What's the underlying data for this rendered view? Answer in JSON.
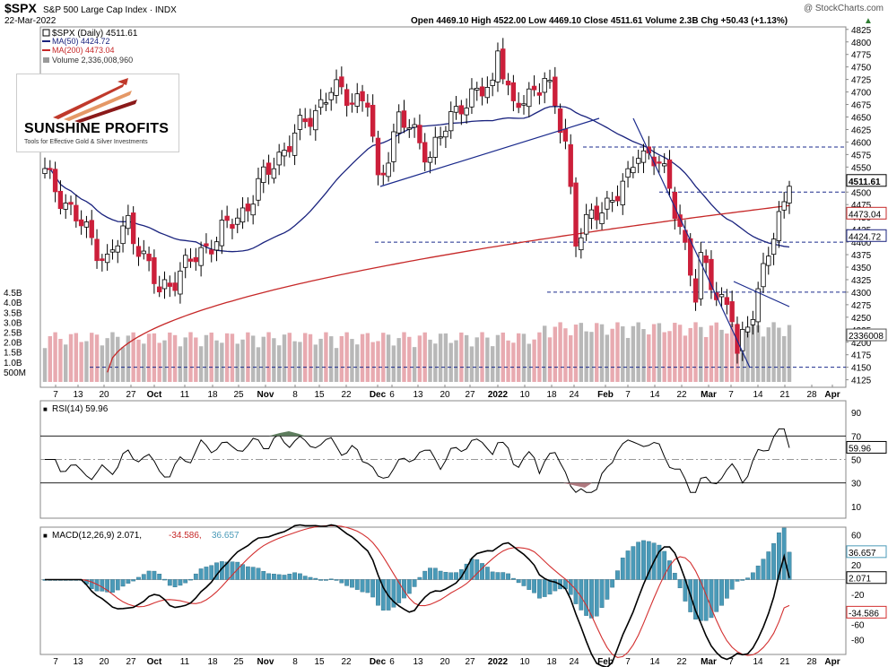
{
  "header": {
    "symbol": "$SPX",
    "name": "S&P 500 Large Cap Index",
    "exchange": "INDX",
    "copyright": "@ StockCharts.com",
    "date": "22-Mar-2022",
    "ohlc_line": "Open 4469.10  High 4522.00  Low 4469.10  Close 4511.61  Volume 2.3B  Chg +50.43 (+1.13%)",
    "change_arrow": "▲"
  },
  "legend": {
    "price": "$SPX (Daily) 4511.61",
    "ma50": "MA(50) 4424.72",
    "ma200": "MA(200) 4473.04",
    "volume": "Volume 2,336,008,960"
  },
  "logo": {
    "line1": "SUNSHINE PROFITS",
    "line2": "Tools for Effective Gold & Silver Investments"
  },
  "price_axis_labels": [
    "4825",
    "4800",
    "4775",
    "4750",
    "4725",
    "4700",
    "4675",
    "4650",
    "4625",
    "4600",
    "4575",
    "4550",
    "4525",
    "4500",
    "4475",
    "4450",
    "4425",
    "4400",
    "4375",
    "4350",
    "4325",
    "4300",
    "4275",
    "4250",
    "4225",
    "4200",
    "4175",
    "4150",
    "4125"
  ],
  "volume_axis_labels": [
    "4.5B",
    "4.0B",
    "3.5B",
    "3.0B",
    "2.5B",
    "2.0B",
    "1.5B",
    "1.0B",
    "500M"
  ],
  "value_tags": {
    "close": "4511.61",
    "ma200": "4473.04",
    "ma50": "4424.72",
    "volume": "2336008"
  },
  "x_axis_labels": [
    "7",
    "13",
    "20",
    "27",
    "Oct",
    "11",
    "18",
    "25",
    "Nov",
    "8",
    "15",
    "22",
    "Dec",
    "6",
    "13",
    "20",
    "27",
    "2022",
    "10",
    "18",
    "24",
    "Feb",
    "7",
    "14",
    "22",
    "Mar",
    "7",
    "14",
    "21",
    "28",
    "Apr"
  ],
  "rsi": {
    "title": "RSI(14) 59.96",
    "axis_labels": [
      "90",
      "70",
      "50",
      "30",
      "10"
    ],
    "tag": "59.96"
  },
  "macd": {
    "title": "MACD(12,26,9) 2.071,",
    "signal_text": "-34.586,",
    "hist_text": "36.657",
    "axis_labels": [
      "60",
      "40",
      "20",
      "0",
      "-20",
      "-40",
      "-60",
      "-80"
    ],
    "tags": {
      "hist": "36.657",
      "macd": "2.071",
      "signal": "-34.586"
    }
  },
  "colors": {
    "up": "#ffffff",
    "down": "#cc1f3a",
    "ma50": "#1a237e",
    "ma200": "#c62828",
    "vol_up": "#b8b8b8",
    "vol_down": "#e8aab0",
    "guide": "#1a2a8c",
    "rsi_fill": "#5e7d5e",
    "macd_hist": "#4a9ab8"
  },
  "chart_data": {
    "type": "candlestick",
    "title": "$SPX S&P 500 Large Cap Index",
    "ylim": [
      4110,
      4830
    ],
    "last": {
      "open": 4469.1,
      "high": 4522.0,
      "low": 4469.1,
      "close": 4511.61,
      "volume": "2.3B",
      "change": 50.43,
      "change_pct": 1.13
    },
    "ma50_last": 4424.72,
    "ma200_last": 4473.04,
    "horizontal_levels": [
      4150,
      4300,
      4400,
      4500,
      4590
    ],
    "key_points": [
      {
        "date": "2021-09-02",
        "close": 4537
      },
      {
        "date": "2021-10-04",
        "close": 4300
      },
      {
        "date": "2021-11-18",
        "close": 4704
      },
      {
        "date": "2021-12-01",
        "close": 4513
      },
      {
        "date": "2022-01-03",
        "close": 4796
      },
      {
        "date": "2022-01-24",
        "close": 4410
      },
      {
        "date": "2022-02-09",
        "close": 4587
      },
      {
        "date": "2022-02-24",
        "close": 4288
      },
      {
        "date": "2022-03-08",
        "close": 4170
      },
      {
        "date": "2022-03-22",
        "close": 4511.61
      }
    ],
    "rsi_last": 59.96,
    "macd_last": {
      "macd": 2.071,
      "signal": -34.586,
      "histogram": 36.657
    }
  }
}
